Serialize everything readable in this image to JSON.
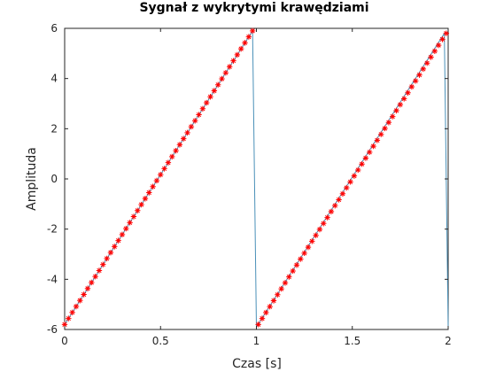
{
  "chart_data": {
    "type": "line",
    "title": "Sygnał z wykrytymi krawędziami",
    "xlabel": "Czas [s]",
    "ylabel": "Amplituda",
    "xlim": [
      0,
      2
    ],
    "ylim": [
      -6,
      6
    ],
    "xticks": [
      0,
      0.5,
      1,
      1.5,
      2
    ],
    "xtick_labels": [
      "0",
      "0.5",
      "1",
      "1.5",
      "2"
    ],
    "yticks": [
      -6,
      -4,
      -2,
      0,
      2,
      4,
      6
    ],
    "ytick_labels": [
      "-6",
      "-4",
      "-2",
      "0",
      "2",
      "4",
      "6"
    ],
    "grid": false,
    "series": [
      {
        "style": "line",
        "color": "#4a90b8",
        "x": [
          0,
          0.98,
          1.0,
          1.98,
          2.0
        ],
        "y": [
          -5.8,
          5.9,
          -5.9,
          5.8,
          -5.9
        ]
      },
      {
        "style": "markers",
        "marker": "asterisk",
        "color": "#ff0000",
        "segments": [
          {
            "x_start": 0.0,
            "x_end": 0.98,
            "y_start": -5.8,
            "y_end": 5.9,
            "count": 50
          },
          {
            "x_start": 1.01,
            "x_end": 1.99,
            "y_start": -5.8,
            "y_end": 5.8,
            "count": 50
          }
        ]
      }
    ]
  }
}
